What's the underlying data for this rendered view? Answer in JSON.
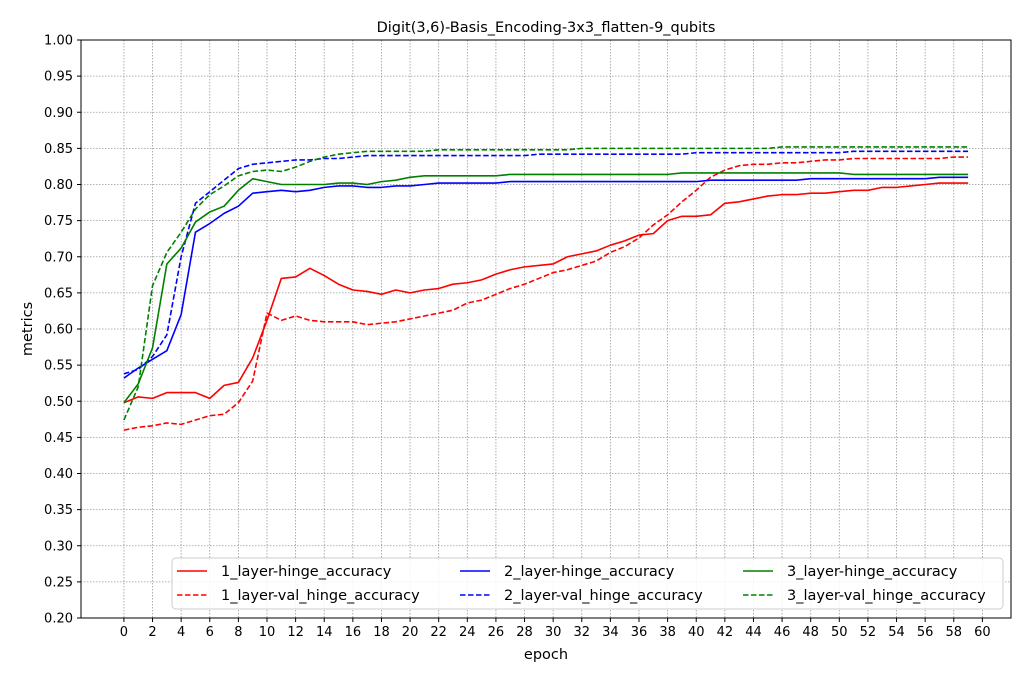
{
  "chart_data": {
    "type": "line",
    "title": "Digit(3,6)-Basis_Encoding-3x3_flatten-9_qubits",
    "xlabel": "epoch",
    "ylabel": "metrics",
    "xlim": [
      -3,
      62
    ],
    "ylim": [
      0.2,
      1.0
    ],
    "xticks": [
      0,
      2,
      4,
      6,
      8,
      10,
      12,
      14,
      16,
      18,
      20,
      22,
      24,
      26,
      28,
      30,
      32,
      34,
      36,
      38,
      40,
      42,
      44,
      46,
      48,
      50,
      52,
      54,
      56,
      58,
      60
    ],
    "yticks": [
      0.2,
      0.25,
      0.3,
      0.35,
      0.4,
      0.45,
      0.5,
      0.55,
      0.6,
      0.65,
      0.7,
      0.75,
      0.8,
      0.85,
      0.9,
      0.95,
      1.0
    ],
    "grid": true,
    "legend_position": "lower-center",
    "legend_columns": 3,
    "series": [
      {
        "name": "1_layer-hinge_accuracy",
        "color": "#ff0000",
        "dash": "solid",
        "values": [
          0.498,
          0.506,
          0.504,
          0.512,
          0.512,
          0.512,
          0.504,
          0.522,
          0.526,
          0.56,
          0.612,
          0.67,
          0.672,
          0.684,
          0.674,
          0.662,
          0.654,
          0.652,
          0.648,
          0.654,
          0.65,
          0.654,
          0.656,
          0.662,
          0.664,
          0.668,
          0.676,
          0.682,
          0.686,
          0.688,
          0.69,
          0.7,
          0.704,
          0.708,
          0.716,
          0.722,
          0.73,
          0.732,
          0.75,
          0.756,
          0.756,
          0.758,
          0.774,
          0.776,
          0.78,
          0.784,
          0.786,
          0.786,
          0.788,
          0.788,
          0.79,
          0.792,
          0.792,
          0.796,
          0.796,
          0.798,
          0.8,
          0.802,
          0.802,
          0.802
        ]
      },
      {
        "name": "1_layer-val_hinge_accuracy",
        "color": "#ff0000",
        "dash": "dashed",
        "values": [
          0.46,
          0.464,
          0.466,
          0.47,
          0.468,
          0.474,
          0.48,
          0.482,
          0.498,
          0.528,
          0.622,
          0.612,
          0.618,
          0.612,
          0.61,
          0.61,
          0.61,
          0.606,
          0.608,
          0.61,
          0.614,
          0.618,
          0.622,
          0.626,
          0.636,
          0.64,
          0.648,
          0.656,
          0.662,
          0.67,
          0.678,
          0.682,
          0.688,
          0.694,
          0.706,
          0.714,
          0.726,
          0.744,
          0.758,
          0.776,
          0.792,
          0.81,
          0.82,
          0.826,
          0.828,
          0.828,
          0.83,
          0.83,
          0.832,
          0.834,
          0.834,
          0.836,
          0.836,
          0.836,
          0.836,
          0.836,
          0.836,
          0.836,
          0.838,
          0.838
        ]
      },
      {
        "name": "2_layer-hinge_accuracy",
        "color": "#0000ff",
        "dash": "solid",
        "values": [
          0.532,
          0.546,
          0.558,
          0.57,
          0.62,
          0.734,
          0.746,
          0.76,
          0.77,
          0.788,
          0.79,
          0.792,
          0.79,
          0.792,
          0.796,
          0.798,
          0.798,
          0.796,
          0.796,
          0.798,
          0.798,
          0.8,
          0.802,
          0.802,
          0.802,
          0.802,
          0.802,
          0.804,
          0.804,
          0.804,
          0.804,
          0.804,
          0.804,
          0.804,
          0.804,
          0.804,
          0.804,
          0.804,
          0.804,
          0.804,
          0.804,
          0.806,
          0.806,
          0.806,
          0.806,
          0.806,
          0.806,
          0.806,
          0.808,
          0.808,
          0.808,
          0.808,
          0.808,
          0.808,
          0.808,
          0.808,
          0.808,
          0.81,
          0.81,
          0.81
        ]
      },
      {
        "name": "2_layer-val_hinge_accuracy",
        "color": "#0000ff",
        "dash": "dashed",
        "values": [
          0.538,
          0.544,
          0.562,
          0.592,
          0.7,
          0.774,
          0.79,
          0.806,
          0.822,
          0.828,
          0.83,
          0.832,
          0.834,
          0.834,
          0.836,
          0.836,
          0.838,
          0.84,
          0.84,
          0.84,
          0.84,
          0.84,
          0.84,
          0.84,
          0.84,
          0.84,
          0.84,
          0.84,
          0.84,
          0.842,
          0.842,
          0.842,
          0.842,
          0.842,
          0.842,
          0.842,
          0.842,
          0.842,
          0.842,
          0.842,
          0.844,
          0.844,
          0.844,
          0.844,
          0.844,
          0.844,
          0.844,
          0.844,
          0.844,
          0.844,
          0.844,
          0.846,
          0.846,
          0.846,
          0.846,
          0.846,
          0.846,
          0.846,
          0.846,
          0.846
        ]
      },
      {
        "name": "3_layer-hinge_accuracy",
        "color": "#008000",
        "dash": "solid",
        "values": [
          0.498,
          0.524,
          0.574,
          0.69,
          0.712,
          0.748,
          0.762,
          0.77,
          0.792,
          0.808,
          0.804,
          0.8,
          0.8,
          0.8,
          0.8,
          0.802,
          0.802,
          0.8,
          0.804,
          0.806,
          0.81,
          0.812,
          0.812,
          0.812,
          0.812,
          0.812,
          0.812,
          0.814,
          0.814,
          0.814,
          0.814,
          0.814,
          0.814,
          0.814,
          0.814,
          0.814,
          0.814,
          0.814,
          0.814,
          0.816,
          0.816,
          0.816,
          0.816,
          0.816,
          0.816,
          0.816,
          0.816,
          0.816,
          0.816,
          0.816,
          0.816,
          0.814,
          0.814,
          0.814,
          0.814,
          0.814,
          0.814,
          0.814,
          0.814,
          0.814
        ]
      },
      {
        "name": "3_layer-val_hinge_accuracy",
        "color": "#008000",
        "dash": "dashed",
        "values": [
          0.474,
          0.52,
          0.66,
          0.706,
          0.734,
          0.766,
          0.786,
          0.798,
          0.812,
          0.818,
          0.82,
          0.818,
          0.824,
          0.832,
          0.838,
          0.842,
          0.844,
          0.846,
          0.846,
          0.846,
          0.846,
          0.846,
          0.848,
          0.848,
          0.848,
          0.848,
          0.848,
          0.848,
          0.848,
          0.848,
          0.848,
          0.848,
          0.85,
          0.85,
          0.85,
          0.85,
          0.85,
          0.85,
          0.85,
          0.85,
          0.85,
          0.85,
          0.85,
          0.85,
          0.85,
          0.85,
          0.852,
          0.852,
          0.852,
          0.852,
          0.852,
          0.852,
          0.852,
          0.852,
          0.852,
          0.852,
          0.852,
          0.852,
          0.852,
          0.852
        ]
      }
    ]
  }
}
